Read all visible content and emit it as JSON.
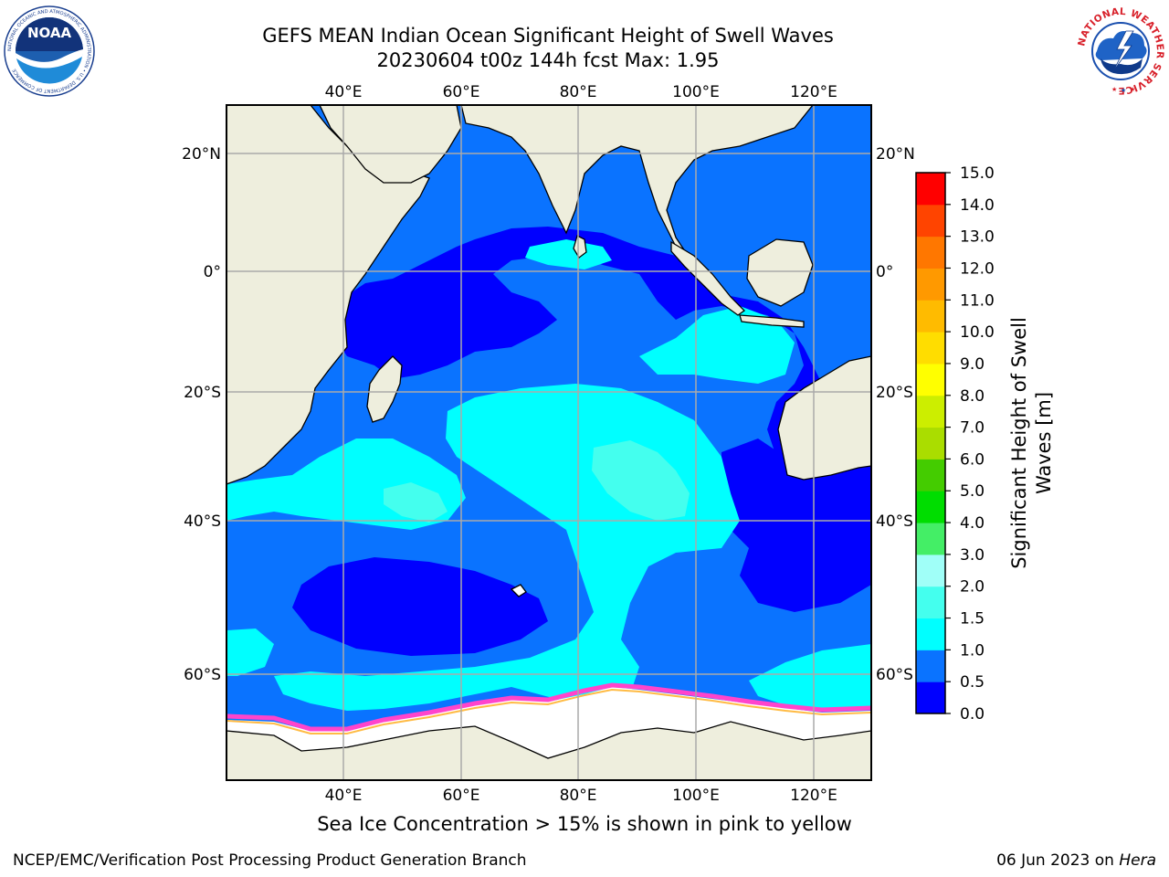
{
  "title": {
    "line1": "GEFS MEAN Indian Ocean Significant Height of Swell Waves",
    "line2": "20230604 t00z 144h fcst   Max: 1.95"
  },
  "map": {
    "lon_labels": [
      "40°E",
      "60°E",
      "80°E",
      "100°E",
      "120°E"
    ],
    "lat_labels": [
      "20°N",
      "0°",
      "20°S",
      "40°S",
      "60°S"
    ],
    "lon_values": [
      40,
      60,
      80,
      100,
      120
    ],
    "lat_values": [
      20,
      0,
      -20,
      -40,
      -60
    ],
    "lon_range": [
      20,
      130
    ],
    "lat_range": [
      -70,
      27
    ],
    "grid": true
  },
  "colorbar": {
    "label_line1": "Significant Height of Swell",
    "label_line2": "Waves [m]",
    "ticks": [
      "0.0",
      "0.5",
      "1.0",
      "1.5",
      "2.0",
      "3.0",
      "4.0",
      "5.0",
      "6.0",
      "7.0",
      "8.0",
      "9.0",
      "10.0",
      "11.0",
      "12.0",
      "13.0",
      "14.0",
      "15.0"
    ],
    "colors": [
      "#0000ff",
      "#0a73ff",
      "#00ffff",
      "#44ffee",
      "#a0fff8",
      "#44ee66",
      "#00dd00",
      "#44cc00",
      "#aadd00",
      "#ccee00",
      "#ffff00",
      "#ffdd00",
      "#ffbb00",
      "#ff9900",
      "#ff7700",
      "#ff4400",
      "#ff0000"
    ]
  },
  "colors": {
    "land": "#eeeedd",
    "ice": "#ffffff",
    "ice_edge": "#ff44cc",
    "grid": "#aaaaaa",
    "deep_blue": "#0000ff",
    "mid_blue": "#0a73ff",
    "cyan": "#00ffff",
    "light_cyan": "#44ffee"
  },
  "caption": "Sea Ice Concentration > 15% is shown in pink to yellow",
  "footer": {
    "left": "NCEP/EMC/Verification Post Processing Product Generation Branch",
    "right_date": "06 Jun 2023 on ",
    "right_machine": "Hera"
  },
  "logos": {
    "noaa": "NOAA",
    "noaa_ring": "NATIONAL OCEANIC AND ATMOSPHERIC ADMINISTRATION • U.S. DEPARTMENT OF COMMERCE",
    "nws_ring": "NATIONAL WEATHER SERVICE"
  }
}
